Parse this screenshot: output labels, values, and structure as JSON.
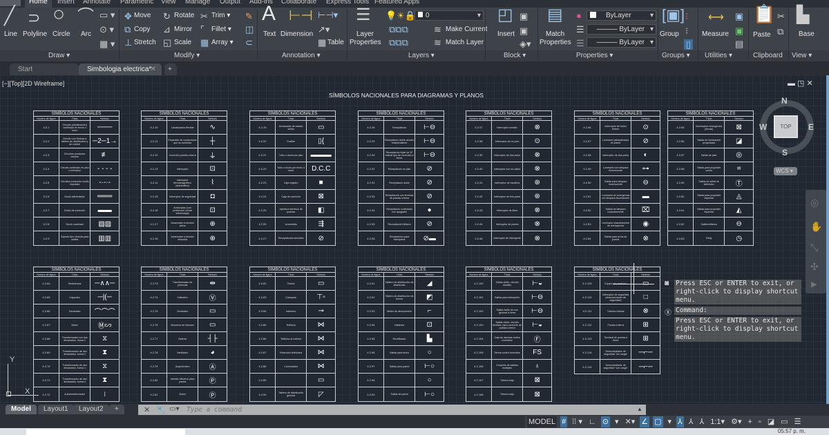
{
  "ribbon_tabs": [
    "Home",
    "Insert",
    "Annotate",
    "Parametric",
    "View",
    "Manage",
    "Output",
    "Add-ins",
    "Collaborate",
    "Express Tools",
    "Featured Apps"
  ],
  "active_tab": "Home",
  "draw": {
    "line": "Line",
    "polyline": "Polyline",
    "circle": "Circle",
    "arc": "Arc",
    "label": "Draw"
  },
  "modify": {
    "move": "Move",
    "rotate": "Rotate",
    "trim": "Trim",
    "copy": "Copy",
    "mirror": "Mirror",
    "fillet": "Fillet",
    "stretch": "Stretch",
    "scale": "Scale",
    "array": "Array",
    "label": "Modify"
  },
  "annotation": {
    "text": "Text",
    "dimension": "Dimension",
    "table": "Table",
    "label": "Annotation"
  },
  "layers": {
    "props1": "Layer",
    "props2": "Properties",
    "current_layer": "0",
    "make_current": "Make Current",
    "match_layer": "Match Layer",
    "label": "Layers"
  },
  "block": {
    "insert": "Insert",
    "label": "Block"
  },
  "properties": {
    "match1": "Match",
    "match2": "Properties",
    "color": "ByLayer",
    "linetype": "ByLayer",
    "lineweight": "ByLayer",
    "label": "Properties"
  },
  "groups": {
    "group": "Group",
    "label": "Groups"
  },
  "utilities": {
    "measure": "Measure",
    "label": "Utilities"
  },
  "clipboard": {
    "paste": "Paste",
    "label": "Clipboard"
  },
  "view": {
    "base": "Base",
    "label": "View"
  },
  "file_tabs": [
    {
      "label": "Start"
    },
    {
      "label": "Simbologia electrica*"
    }
  ],
  "viewport_label": "[−][Top][2D Wireframe]",
  "drawing_title": "SÍMBOLOS NACIONALES PARA DIAGRAMAS Y PLANOS",
  "table_title": "SÍMBOLOS NACIONALES",
  "table_headers": [
    "Número de figura",
    "Título",
    "Símbolo"
  ],
  "tables": [
    {
      "rows": [
        [
          "4.2.1",
          "Circuito (canalización) confinado en techo o muro",
          "───"
        ],
        [
          "4.2.2",
          "Circuito con flechas a tablero de distribución y de control",
          "─2─1→"
        ],
        [
          "4.2.3",
          "Circuitos conductor ocultos",
          "≢"
        ],
        [
          "4.2.4",
          "Circuito confinado en piso o entrepiso",
          "- - - -"
        ],
        [
          "4.2.5",
          "Circuitos conductor oculto expuesto",
          "-·-·-"
        ],
        [
          "4.2.6",
          "Ducto alimentador",
          "═══"
        ],
        [
          "4.2.7",
          "Ducto de conexión",
          "▬▬"
        ],
        [
          "4.2.8",
          "Ducto cuadrado",
          "▨▨"
        ],
        [
          "4.2.9",
          "Soporte tipo charola para cables",
          "▥▥"
        ]
      ]
    },
    {
      "rows": [
        [
          "4.2.10",
          "Canalización flexible",
          "∿"
        ],
        [
          "4.2.11",
          "Ensamble de conductores que se conectan",
          "┼"
        ],
        [
          "4.2.12",
          "Conexión puesta a tierra",
          "⏚"
        ],
        [
          "4.2.13",
          "Interruptor",
          "⊡"
        ],
        [
          "4.2.14",
          "Interruptor termomagnético (automático)",
          "⌇"
        ],
        [
          "4.2.15",
          "Interruptor de seguridad",
          "◘"
        ],
        [
          "4.2.16",
          "Arrancador (con protección contra sobrecarga)",
          "⊡"
        ],
        [
          "4.2.17",
          "Arrancador a tensión plena",
          "⊕"
        ],
        [
          "4.2.18",
          "Arrancador a tensión reducida",
          "⊕"
        ]
      ]
    },
    {
      "rows": [
        [
          "4.2.19",
          "Arrancador de estado sólido",
          "▭"
        ],
        [
          "4.2.20",
          "Fusible",
          "▯{"
        ],
        [
          "4.2.21",
          "Tubo o ducto por piso",
          "▬▬▬"
        ],
        [
          "4.2.22",
          "Tubo o ducto por techo o muro",
          "D.C.C"
        ],
        [
          "4.2.23",
          "Caja registro",
          "■"
        ],
        [
          "4.2.24",
          "Caja de conexión",
          "⊠"
        ],
        [
          "4.2.25",
          "Apertura eléctrica de puertas",
          "◧"
        ],
        [
          "4.2.26",
          "Acometida",
          "⇶"
        ],
        [
          "4.2.27",
          "Receptáculos sencillos",
          "⊘"
        ]
      ]
    },
    {
      "rows": [
        [
          "4.2.28",
          "Receptáculo",
          "⊢⊖"
        ],
        [
          "4.2.29",
          "Receptáculo doble circuito independiente",
          "⊢⊖"
        ],
        [
          "4.2.30",
          "Receptáculo triple de 1F indicar tipo de conexión a tierra",
          "⊢⊖"
        ],
        [
          "4.2.31",
          "Receptáculo en piso",
          "⊘"
        ],
        [
          "4.2.32",
          "Receptáculo doble",
          "⊘"
        ],
        [
          "4.2.33",
          "Receptáculo con terminal de puesta a tierra",
          "⊘"
        ],
        [
          "4.2.34",
          "Receptáculo controlado con apagador",
          "●"
        ],
        [
          "4.2.35",
          "Receptáculo trifásico",
          "⊘"
        ],
        [
          "4.2.36",
          "Receptáculo para intemperie",
          "⊘▬"
        ]
      ]
    },
    {
      "rows": [
        [
          "4.2.37",
          "Interruptor sencillo",
          "⊗"
        ],
        [
          "4.2.38",
          "Interruptor de un polo",
          "⊙"
        ],
        [
          "4.2.39",
          "Interruptor de dos polos",
          "⊗"
        ],
        [
          "4.2.40",
          "Interruptor con luz piloto",
          "⊗"
        ],
        [
          "4.2.41",
          "Interruptor de escalera",
          "⊛"
        ],
        [
          "4.2.42",
          "Interruptor de tres polos",
          "⊛"
        ],
        [
          "4.2.43",
          "Interruptor de llave",
          "⊗"
        ],
        [
          "4.2.44",
          "Interruptor de puerta",
          "⊗"
        ],
        [
          "4.2.45",
          "Interruptor de intemperie",
          "⊗"
        ]
      ]
    },
    {
      "rows": [
        [
          "4.2.46",
          "Interruptor de botón timbre",
          "⊙"
        ],
        [
          "4.2.47",
          "Luminario (abanderado) en pared",
          "⊘"
        ],
        [
          "4.2.48",
          "Interruptor de dos polos",
          "◐"
        ],
        [
          "4.2.49",
          "Luminario con lámpara fluorescente",
          "⊶"
        ],
        [
          "4.2.50",
          "Salida para lámpara fluorescente",
          "⊖"
        ],
        [
          "4.2.51",
          "Luminario de emergencia con lámpara fluorescente",
          "▬"
        ],
        [
          "4.2.52",
          "Salida de lámpara incandescente",
          "⌧"
        ],
        [
          "4.2.53",
          "Luminario incandescente de emergencia",
          "◉"
        ],
        [
          "4.2.54",
          "Salida para la luz de puerta",
          "⊗"
        ]
      ]
    },
    {
      "rows": [
        [
          "4.2.55",
          "Iluminación emergencia (dorsal)",
          "⊠"
        ],
        [
          "4.2.56",
          "Salida de iluminación proyectada",
          "◪"
        ],
        [
          "4.2.57",
          "Salida de piso",
          "◎"
        ],
        [
          "4.2.58",
          "Salida para propósito oculto",
          "⌗"
        ],
        [
          "4.2.59",
          "Salida de señal de televisión",
          "Ⓣ"
        ],
        [
          "4.2.60",
          "Salida para propósito especial",
          "◬"
        ],
        [
          "4.2.61",
          "Salida para propósito especial",
          "◭"
        ],
        [
          "4.2.62",
          "Salida trifásica",
          "⊖"
        ],
        [
          "4.2.63",
          "Reloj",
          "◷"
        ]
      ]
    },
    {
      "rows": [
        [
          "4.2.64",
          "Resistencia",
          "─∧∧─"
        ],
        [
          "4.2.65",
          "Capacitor",
          "─|(─"
        ],
        [
          "4.2.66",
          "Devanado",
          "⌒⌒⌒"
        ],
        [
          "4.2.67",
          "Motor",
          "Ⓜ∽"
        ],
        [
          "4.2.68",
          "Transformador con dos devanados, forma 1",
          "⧖"
        ],
        [
          "4.2.69",
          "Transformador de dos devanados, forma 2",
          "⧗"
        ],
        [
          "4.2.70",
          "Transformador de dos devanados, forma 1",
          "⧖"
        ],
        [
          "4.2.71",
          "Transformador de dos devanados, forma 2",
          "⧗"
        ],
        [
          "4.2.72",
          "Autotransformador",
          "⧘"
        ]
      ]
    },
    {
      "rows": [
        [
          "4.2.73",
          "Transformador de potencial",
          "⇹"
        ],
        [
          "4.2.74",
          "Voltmetro",
          "Ⓥ"
        ],
        [
          "4.2.75",
          "Zumbador",
          "▭"
        ],
        [
          "4.2.76",
          "Botonera de botones",
          "▭"
        ],
        [
          "4.2.77",
          "Batería",
          "┤├"
        ],
        [
          "4.2.78",
          "Ventilador",
          "◕"
        ],
        [
          "4.2.79",
          "Amperímetro",
          "Ⓐ"
        ],
        [
          "4.2.80",
          "Abridor eléctrico para puerta",
          "Ⓟ"
        ],
        [
          "4.2.81",
          "Botón",
          "Ⓟ"
        ]
      ]
    },
    {
      "rows": [
        [
          "4.2.82",
          "Timbre",
          "▭"
        ],
        [
          "4.2.83",
          "Campana",
          "⊤▫"
        ],
        [
          "4.2.84",
          "Interfono",
          "⊸"
        ],
        [
          "4.2.85",
          "Teléfono",
          "⋈"
        ],
        [
          "4.2.86",
          "Teléfono al exterior",
          "⋈"
        ],
        [
          "4.2.87",
          "Extensión telefónica",
          "⋈"
        ],
        [
          "4.2.88",
          "Conmutador",
          "⋈"
        ],
        [
          "4.2.89",
          "",
          "▭"
        ],
        [
          "4.2.90",
          "Tablero de distribución general",
          "◸"
        ]
      ]
    },
    {
      "rows": [
        [
          "4.2.91",
          "Tablero de distribución de alumbrado",
          "◢"
        ],
        [
          "4.2.92",
          "Tablero de distribución de fuerza",
          "◩"
        ],
        [
          "4.2.93",
          "Medio de desconexión",
          "⌐"
        ],
        [
          "4.2.94",
          "Gabinete",
          "⊡"
        ],
        [
          "4.2.95",
          "Rectificador",
          "▙"
        ],
        [
          "4.2.96",
          "Salida para techo",
          "○"
        ],
        [
          "4.2.97",
          "Salida para pared",
          "⊢○"
        ],
        [
          "4.2.98",
          "",
          "○"
        ],
        [
          "4.2.99",
          "Salida de pared",
          "⊢○"
        ]
      ]
    },
    {
      "rows": [
        [
          "4.2.100",
          "Salida doble, circuito dividido",
          "⊢◒"
        ],
        [
          "4.2.101",
          "Salida para intemperie",
          "⊢⊖"
        ],
        [
          "4.2.102",
          "Salida doble de uso general a tierra",
          "⊢⊖"
        ],
        [
          "4.2.103",
          "Salida doble, circuito dividido, para conexión de puesta a tierra",
          "⊢◒"
        ],
        [
          "4.2.104",
          "Caja de alarmas contra incendios",
          "Ⓕ"
        ],
        [
          "4.2.105",
          "Sirena contra incendios",
          "FS"
        ],
        [
          "4.2.106",
          "Conjunto de salidas múltiples",
          "♁"
        ],
        [
          "4.2.107",
          "Tubería bajo",
          "⊠"
        ],
        [
          "4.2.108",
          "Tubería bajo",
          "⊠"
        ]
      ]
    },
    {
      "rows": [
        [
          "4.2.109",
          "Equipo de medición",
          "▭"
        ],
        [
          "4.2.110",
          "Interruptor de seguridad (desconectador de seguridad)",
          "□"
        ],
        [
          "4.2.111",
          "Tubería vertical",
          "⊗"
        ],
        [
          "4.2.112",
          "Puesta a tierra",
          "⊞"
        ],
        [
          "4.2.113",
          "Terminal de puesta a tierra",
          "⊞"
        ],
        [
          "4.2.114",
          "Desconectador de seguridad \"sin carga\"",
          "─⌐─"
        ],
        [
          "4.2.115",
          "Desconectador de seguridad \"con carga\"",
          "─⌐─"
        ]
      ]
    }
  ],
  "viewcube": {
    "n": "N",
    "s": "S",
    "e": "E",
    "w": "W",
    "top": "TOP",
    "wcs": "WCS"
  },
  "ucs": {
    "x": "X",
    "y": "Y"
  },
  "command": {
    "line1": "Press ESC or ENTER to exit, or right-click to display shortcut menu.",
    "line2": "Command:",
    "line3": "Press ESC or ENTER to exit, or right-click to display shortcut menu.",
    "placeholder": "Type a command"
  },
  "layout_tabs": [
    "Model",
    "Layout1",
    "Layout2"
  ],
  "status": {
    "model": "MODEL",
    "scale": "1:1"
  },
  "clock": "05:57 p. m."
}
